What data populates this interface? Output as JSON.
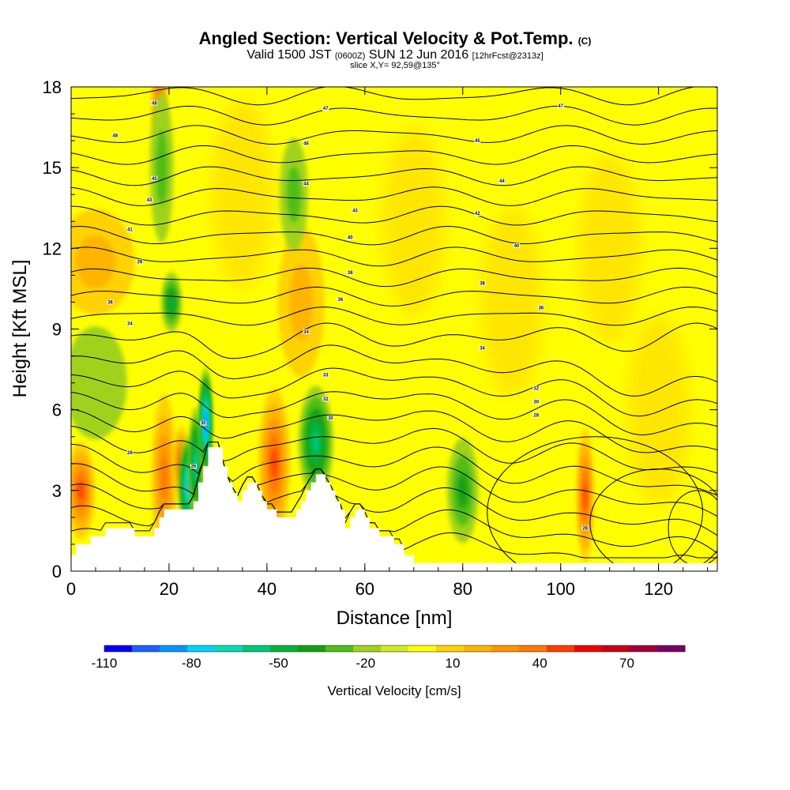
{
  "title": "Angled Section: Vertical Velocity & Pot.Temp.",
  "title_suffix": "(C)",
  "subtitle_main": "Valid 1500 JST",
  "subtitle_z": "(0600Z)",
  "subtitle_date": "SUN 12 Jun 2016",
  "subtitle_fcst": "[12hrFcst@2313z]",
  "slice_label": "slice X,Y= 92,59@135°",
  "chart_data": {
    "type": "heatmap",
    "xlabel": "Distance [nm]",
    "ylabel": "Height [Kft MSL]",
    "xlim": [
      0,
      132
    ],
    "ylim": [
      0,
      18
    ],
    "x_ticks": [
      0,
      20,
      40,
      60,
      80,
      100,
      120
    ],
    "y_ticks": [
      0,
      3,
      6,
      9,
      12,
      15,
      18
    ],
    "colorbar": {
      "label": "Vertical Velocity [cm/s]",
      "tick_labels": [
        -110,
        -80,
        -50,
        -20,
        10,
        40,
        70
      ],
      "range": [
        -110,
        90
      ],
      "step": 10,
      "colors": [
        "#0000ff",
        "#1f5fff",
        "#0096ff",
        "#00d2ff",
        "#00dcb4",
        "#00c878",
        "#00b43c",
        "#14a014",
        "#50be14",
        "#a0d21e",
        "#d2eb1e",
        "#ffff00",
        "#ffd200",
        "#ffb400",
        "#ff9600",
        "#ff7800",
        "#ff3c00",
        "#f00000",
        "#c80014",
        "#a0003c",
        "#780064"
      ]
    },
    "terrain_profile": {
      "x": [
        0,
        1,
        2,
        3,
        4,
        5,
        6,
        7,
        8,
        9,
        10,
        11,
        12,
        13,
        14,
        15,
        16,
        17,
        18,
        19,
        20,
        21,
        22,
        23,
        24,
        25,
        26,
        27,
        28,
        29,
        30,
        31,
        32,
        33,
        34,
        35,
        36,
        37,
        38,
        39,
        40,
        41,
        42,
        43,
        44,
        45,
        46,
        47,
        48,
        49,
        50,
        51,
        52,
        53,
        54,
        55,
        56,
        57,
        58,
        59,
        60,
        61,
        62,
        63,
        64,
        65,
        66,
        67,
        68,
        69,
        70,
        72,
        74,
        76,
        78,
        80,
        82,
        84,
        86,
        88,
        90,
        92,
        94,
        96,
        98,
        100,
        102,
        104,
        106,
        108,
        110,
        112,
        114,
        116,
        118,
        120,
        122,
        124,
        126,
        128,
        130,
        132
      ],
      "y": [
        0.6,
        1.0,
        1.0,
        1.0,
        1.3,
        1.3,
        1.3,
        1.6,
        1.6,
        1.6,
        1.6,
        1.6,
        1.6,
        1.3,
        1.3,
        1.3,
        1.3,
        1.6,
        2.0,
        2.3,
        2.3,
        2.3,
        2.3,
        2.3,
        2.3,
        2.6,
        3.3,
        3.9,
        4.6,
        4.6,
        4.6,
        3.9,
        3.3,
        2.9,
        2.6,
        3.0,
        3.3,
        3.3,
        3.0,
        2.6,
        2.3,
        2.3,
        2.0,
        2.0,
        2.0,
        2.0,
        2.3,
        2.6,
        3.0,
        3.3,
        3.6,
        3.6,
        3.3,
        3.0,
        2.6,
        2.3,
        1.6,
        2.0,
        2.3,
        2.3,
        2.0,
        1.6,
        1.6,
        1.3,
        1.3,
        1.3,
        1.0,
        1.0,
        0.6,
        0.6,
        0.3,
        0.3,
        0.3,
        0.3,
        0.3,
        0.3,
        0.3,
        0.3,
        0.3,
        0.3,
        0.3,
        0.3,
        0.3,
        0.3,
        0.3,
        0.3,
        0.3,
        0.3,
        0.3,
        0.3,
        0.3,
        0.3,
        0.3,
        0.3,
        0.3,
        0.3,
        0.3,
        0.3,
        0.3,
        0.3,
        0.3,
        0.3
      ]
    },
    "vertical_velocity_features": [
      {
        "x": 2,
        "y": 3.0,
        "w": 1.8,
        "h": 1.3,
        "value": 50
      },
      {
        "x": 19,
        "y": 3.5,
        "w": 1.6,
        "h": 2.2,
        "value": 40
      },
      {
        "x": 22.5,
        "y": 4.0,
        "w": 1.0,
        "h": 1.0,
        "value": 50
      },
      {
        "x": 18,
        "y": 17.5,
        "w": 1.0,
        "h": 1.5,
        "value": 40
      },
      {
        "x": 41.5,
        "y": 4.0,
        "w": 2.0,
        "h": 2.0,
        "value": 50
      },
      {
        "x": 105,
        "y": 2.8,
        "w": 1.1,
        "h": 1.8,
        "value": 50
      },
      {
        "x": 5,
        "y": 11.5,
        "w": 5,
        "h": 1.4,
        "value": 20
      },
      {
        "x": 47,
        "y": 10.0,
        "w": 3,
        "h": 2.0,
        "value": 20
      },
      {
        "x": 24,
        "y": 3.2,
        "w": 1.2,
        "h": 1.3,
        "value": -80
      },
      {
        "x": 25.5,
        "y": 4.0,
        "w": 0.9,
        "h": 1.5,
        "value": -60
      },
      {
        "x": 27.5,
        "y": 5.5,
        "w": 0.8,
        "h": 1.5,
        "value": -90
      },
      {
        "x": 50,
        "y": 4.8,
        "w": 2.2,
        "h": 1.5,
        "value": -50
      },
      {
        "x": 80,
        "y": 3.0,
        "w": 2.0,
        "h": 1.4,
        "value": -30
      },
      {
        "x": 20.5,
        "y": 10.0,
        "w": 1.3,
        "h": 0.8,
        "value": -40
      },
      {
        "x": 5,
        "y": 7.0,
        "w": 4,
        "h": 1.5,
        "value": -10
      },
      {
        "x": 18.5,
        "y": 15.0,
        "w": 1.5,
        "h": 2.0,
        "value": -20
      },
      {
        "x": 45.5,
        "y": 14.0,
        "w": 1.8,
        "h": 1.5,
        "value": -20
      }
    ],
    "isentropes_label": "Potential temperature (C) contours",
    "isentrope_labels": [
      {
        "x": 17,
        "y": 17.4,
        "text": "48"
      },
      {
        "x": 52,
        "y": 17.2,
        "text": "47"
      },
      {
        "x": 100,
        "y": 17.3,
        "text": "47"
      },
      {
        "x": 9,
        "y": 16.2,
        "text": "48"
      },
      {
        "x": 48,
        "y": 15.9,
        "text": "46"
      },
      {
        "x": 83,
        "y": 16.0,
        "text": "45"
      },
      {
        "x": 17,
        "y": 14.6,
        "text": "45"
      },
      {
        "x": 48,
        "y": 14.4,
        "text": "44"
      },
      {
        "x": 88,
        "y": 14.5,
        "text": "44"
      },
      {
        "x": 16,
        "y": 13.8,
        "text": "43"
      },
      {
        "x": 58,
        "y": 13.4,
        "text": "43"
      },
      {
        "x": 83,
        "y": 13.3,
        "text": "42"
      },
      {
        "x": 12,
        "y": 12.7,
        "text": "41"
      },
      {
        "x": 57,
        "y": 12.4,
        "text": "40"
      },
      {
        "x": 91,
        "y": 12.1,
        "text": "40"
      },
      {
        "x": 14,
        "y": 11.5,
        "text": "39"
      },
      {
        "x": 57,
        "y": 11.1,
        "text": "38"
      },
      {
        "x": 84,
        "y": 10.7,
        "text": "38"
      },
      {
        "x": 8,
        "y": 10.0,
        "text": "36"
      },
      {
        "x": 55,
        "y": 10.1,
        "text": "36"
      },
      {
        "x": 96,
        "y": 9.8,
        "text": "36"
      },
      {
        "x": 12,
        "y": 9.2,
        "text": "34"
      },
      {
        "x": 48,
        "y": 8.9,
        "text": "34"
      },
      {
        "x": 84,
        "y": 8.3,
        "text": "34"
      },
      {
        "x": 52,
        "y": 7.3,
        "text": "33"
      },
      {
        "x": 95,
        "y": 6.8,
        "text": "32"
      },
      {
        "x": 52,
        "y": 6.4,
        "text": "32"
      },
      {
        "x": 95,
        "y": 6.3,
        "text": "30"
      },
      {
        "x": 95,
        "y": 5.8,
        "text": "28"
      },
      {
        "x": 27,
        "y": 5.5,
        "text": "30"
      },
      {
        "x": 53,
        "y": 5.7,
        "text": "30"
      },
      {
        "x": 12,
        "y": 4.4,
        "text": "28"
      },
      {
        "x": 25,
        "y": 3.9,
        "text": "26"
      },
      {
        "x": 105,
        "y": 1.6,
        "text": "28"
      }
    ]
  }
}
